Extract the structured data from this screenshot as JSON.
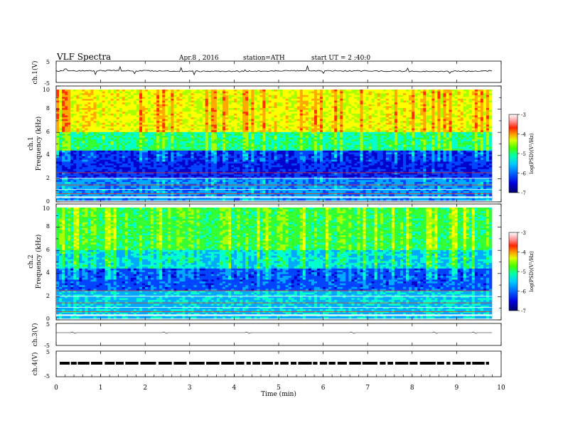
{
  "header": {
    "title": "VLF Spectra",
    "date": "Apr.8 , 2016",
    "station": "station=ATH",
    "start": "start UT = 2 :40:0"
  },
  "chart_data": [
    {
      "type": "line",
      "panel": "ch1-waveform",
      "ylabel": "ch.1(V)",
      "ylim": [
        -5,
        5
      ],
      "yticks": [
        "5",
        "-5"
      ],
      "series": [
        {
          "values": [
            0.5,
            0.3,
            0.4,
            0.6,
            0.5,
            0.4,
            0.6,
            0.7,
            0.5,
            0.4
          ]
        }
      ]
    },
    {
      "type": "heatmap",
      "panel": "ch1-spectrogram",
      "ylabel": "ch.1\nFrequency (kHz)",
      "ylim": [
        0,
        10
      ],
      "yticks": [
        "0",
        "2",
        "4",
        "6",
        "8",
        "10"
      ],
      "colorbar": {
        "label": "log(PSD)(V²/Hz)",
        "range": [
          -7,
          -3
        ],
        "ticks": [
          "-3",
          "-4",
          "-5",
          "-6",
          "-7"
        ]
      }
    },
    {
      "type": "heatmap",
      "panel": "ch2-spectrogram",
      "ylabel": "ch.2\nFrequency (kHz)",
      "ylim": [
        0,
        10
      ],
      "yticks": [
        "0",
        "2",
        "4",
        "6",
        "8",
        "10"
      ],
      "colorbar": {
        "label": "log(PSD)(V²/Hz)",
        "range": [
          -7,
          -3
        ],
        "ticks": [
          "-3",
          "-4",
          "-5",
          "-6",
          "-7"
        ]
      }
    },
    {
      "type": "line",
      "panel": "ch3-waveform",
      "ylabel": "ch.3(V)",
      "ylim": [
        -5,
        5
      ],
      "yticks": [
        "5",
        "-5"
      ],
      "series": [
        {
          "values": [
            0,
            0,
            0,
            0,
            0,
            0,
            0,
            0,
            0,
            0
          ]
        }
      ]
    },
    {
      "type": "line",
      "panel": "ch4-waveform",
      "ylabel": "ch.4(V)",
      "ylim": [
        -5,
        5
      ],
      "yticks": [
        "5",
        "-5"
      ],
      "series": [
        {
          "values": [
            0,
            0,
            0,
            0,
            0,
            0,
            0,
            0,
            0,
            0
          ]
        }
      ]
    }
  ],
  "xaxis": {
    "label": "Time (min)",
    "xlim": [
      0,
      10
    ],
    "ticks": [
      "0",
      "1",
      "2",
      "3",
      "4",
      "5",
      "6",
      "7",
      "8",
      "9",
      "10"
    ]
  },
  "colors": {
    "colormap": [
      "#000066",
      "#0000cc",
      "#0044ff",
      "#00aaff",
      "#00ffcc",
      "#33ff33",
      "#aaff00",
      "#ffff00",
      "#ffaa00",
      "#ff3300",
      "#cc0000",
      "#ffffff"
    ]
  }
}
